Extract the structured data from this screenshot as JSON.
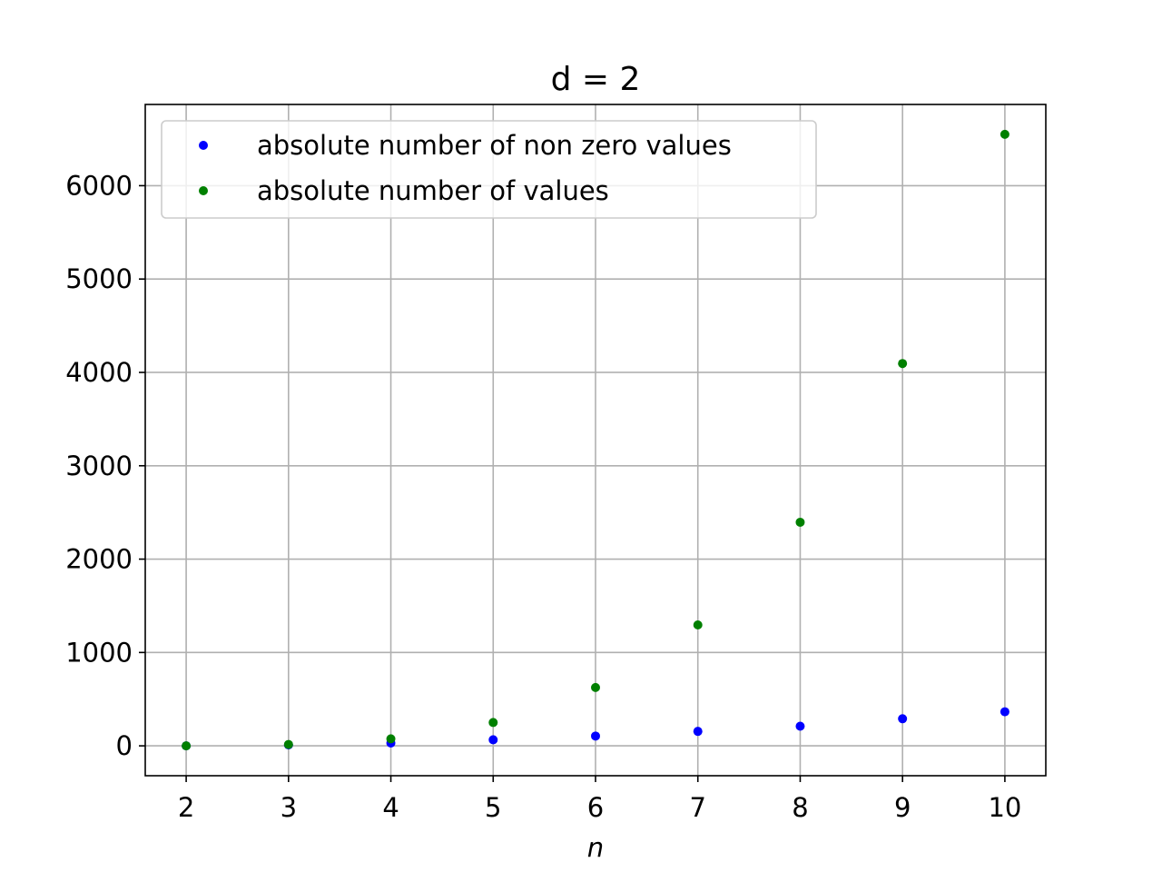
{
  "chart_data": {
    "type": "scatter",
    "title": "d = 2",
    "xlabel": "n",
    "ylabel": "",
    "x": [
      2,
      3,
      4,
      5,
      6,
      7,
      8,
      9,
      10
    ],
    "xlim": [
      1.6,
      10.4
    ],
    "ylim": [
      -320,
      6870
    ],
    "xticks": [
      "2",
      "3",
      "4",
      "5",
      "6",
      "7",
      "8",
      "9",
      "10"
    ],
    "yticks": [
      "0",
      "1000",
      "2000",
      "3000",
      "4000",
      "5000",
      "6000"
    ],
    "grid": true,
    "legend_position": "top-left",
    "series": [
      {
        "name": "absolute number of non zero values",
        "color": "#0000ff",
        "values": [
          0,
          10,
          30,
          65,
          105,
          155,
          210,
          290,
          365
        ]
      },
      {
        "name": "absolute number of values",
        "color": "#008000",
        "values": [
          0,
          15,
          75,
          250,
          625,
          1295,
          2395,
          4095,
          6550
        ]
      }
    ]
  }
}
